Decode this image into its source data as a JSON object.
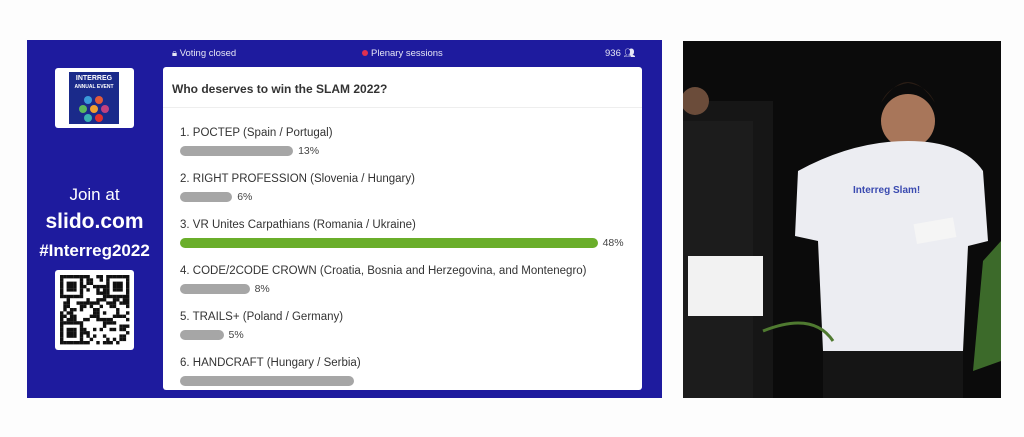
{
  "header": {
    "status": "Voting closed",
    "session": "Plenary sessions",
    "participants": "936"
  },
  "sidebar": {
    "logo_text": [
      "INTERREG",
      "ANNUAL EVENT"
    ],
    "join": "Join at",
    "site": "slido.com",
    "hashtag": "#Interreg2022"
  },
  "poll": {
    "question": "Who deserves to win the SLAM 2022?",
    "options": [
      {
        "label": "1. POCTEP (Spain / Portugal)",
        "value": 13,
        "pct": "13%"
      },
      {
        "label": "2. RIGHT PROFESSION (Slovenia / Hungary)",
        "value": 6,
        "pct": "6%"
      },
      {
        "label": "3. VR Unites Carpathians (Romania / Ukraine)",
        "value": 48,
        "pct": "48%"
      },
      {
        "label": "4. CODE/2CODE CROWN (Croatia, Bosnia and Herzegovina, and Montenegro)",
        "value": 8,
        "pct": "8%"
      },
      {
        "label": "5. TRAILS+ (Poland / Germany)",
        "value": 5,
        "pct": "5%"
      },
      {
        "label": "6. HANDCRAFT (Hungary / Serbia)",
        "value": 20
      }
    ],
    "bar_color": "#a6a6a6",
    "winner_color": "#6aae2a"
  },
  "photo": {
    "shirt_text": "Interreg Slam!"
  }
}
